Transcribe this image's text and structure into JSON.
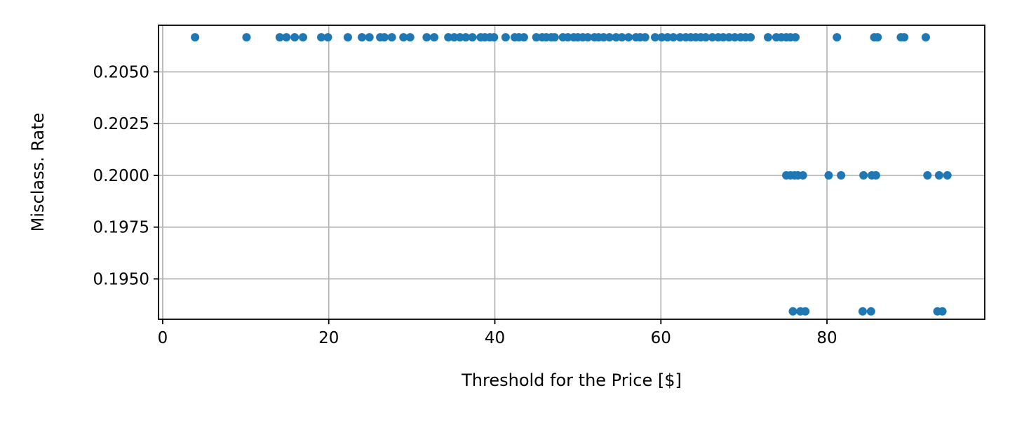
{
  "chart_data": {
    "type": "scatter",
    "title": "",
    "xlabel": "Threshold for the Price [$]",
    "ylabel": "Misclass. Rate",
    "xlim": [
      -0.5,
      99
    ],
    "ylim": [
      0.19305,
      0.20725
    ],
    "xticks": [
      0,
      20,
      40,
      60,
      80
    ],
    "xtick_labels": [
      "0",
      "20",
      "40",
      "60",
      "80"
    ],
    "yticks": [
      0.195,
      0.1975,
      0.2,
      0.2025,
      0.205
    ],
    "ytick_labels": [
      "0.1950",
      "0.1975",
      "0.2000",
      "0.2025",
      "0.2050"
    ],
    "grid": true,
    "marker_color": "#1f77b4",
    "series": [
      {
        "points": [
          [
            3.9,
            0.20667
          ],
          [
            10.1,
            0.20667
          ],
          [
            14.1,
            0.20667
          ],
          [
            14.9,
            0.20667
          ],
          [
            15.9,
            0.20667
          ],
          [
            16.9,
            0.20667
          ],
          [
            19.1,
            0.20667
          ],
          [
            19.9,
            0.20667
          ],
          [
            22.3,
            0.20667
          ],
          [
            24.0,
            0.20667
          ],
          [
            24.9,
            0.20667
          ],
          [
            26.2,
            0.20667
          ],
          [
            26.7,
            0.20667
          ],
          [
            27.6,
            0.20667
          ],
          [
            29.0,
            0.20667
          ],
          [
            29.8,
            0.20667
          ],
          [
            31.8,
            0.20667
          ],
          [
            32.7,
            0.20667
          ],
          [
            34.4,
            0.20667
          ],
          [
            35.1,
            0.20667
          ],
          [
            35.8,
            0.20667
          ],
          [
            36.5,
            0.20667
          ],
          [
            37.3,
            0.20667
          ],
          [
            38.3,
            0.20667
          ],
          [
            38.8,
            0.20667
          ],
          [
            39.4,
            0.20667
          ],
          [
            39.9,
            0.20667
          ],
          [
            41.3,
            0.20667
          ],
          [
            42.4,
            0.20667
          ],
          [
            42.9,
            0.20667
          ],
          [
            43.5,
            0.20667
          ],
          [
            45.0,
            0.20667
          ],
          [
            45.7,
            0.20667
          ],
          [
            46.2,
            0.20667
          ],
          [
            46.8,
            0.20667
          ],
          [
            47.2,
            0.20667
          ],
          [
            48.2,
            0.20667
          ],
          [
            48.8,
            0.20667
          ],
          [
            49.5,
            0.20667
          ],
          [
            50.0,
            0.20667
          ],
          [
            50.6,
            0.20667
          ],
          [
            51.2,
            0.20667
          ],
          [
            52.0,
            0.20667
          ],
          [
            52.5,
            0.20667
          ],
          [
            53.1,
            0.20667
          ],
          [
            53.8,
            0.20667
          ],
          [
            54.6,
            0.20667
          ],
          [
            55.3,
            0.20667
          ],
          [
            56.1,
            0.20667
          ],
          [
            57.0,
            0.20667
          ],
          [
            57.5,
            0.20667
          ],
          [
            58.1,
            0.20667
          ],
          [
            59.3,
            0.20667
          ],
          [
            60.1,
            0.20667
          ],
          [
            60.8,
            0.20667
          ],
          [
            61.5,
            0.20667
          ],
          [
            62.3,
            0.20667
          ],
          [
            63.0,
            0.20667
          ],
          [
            63.6,
            0.20667
          ],
          [
            64.2,
            0.20667
          ],
          [
            64.8,
            0.20667
          ],
          [
            65.4,
            0.20667
          ],
          [
            66.2,
            0.20667
          ],
          [
            66.9,
            0.20667
          ],
          [
            67.5,
            0.20667
          ],
          [
            68.2,
            0.20667
          ],
          [
            68.9,
            0.20667
          ],
          [
            69.6,
            0.20667
          ],
          [
            70.2,
            0.20667
          ],
          [
            70.8,
            0.20667
          ],
          [
            72.9,
            0.20667
          ],
          [
            73.9,
            0.20667
          ],
          [
            74.5,
            0.20667
          ],
          [
            75.1,
            0.20667
          ],
          [
            75.6,
            0.20667
          ],
          [
            76.2,
            0.20667
          ],
          [
            81.2,
            0.20667
          ],
          [
            85.7,
            0.20667
          ],
          [
            86.1,
            0.20667
          ],
          [
            88.9,
            0.20667
          ],
          [
            89.3,
            0.20667
          ],
          [
            91.9,
            0.20667
          ],
          [
            75.1,
            0.2
          ],
          [
            75.6,
            0.2
          ],
          [
            76.1,
            0.2
          ],
          [
            76.5,
            0.2
          ],
          [
            77.1,
            0.2
          ],
          [
            80.2,
            0.2
          ],
          [
            81.7,
            0.2
          ],
          [
            84.4,
            0.2
          ],
          [
            85.4,
            0.2
          ],
          [
            85.9,
            0.2
          ],
          [
            92.1,
            0.2
          ],
          [
            93.5,
            0.2
          ],
          [
            94.5,
            0.2
          ],
          [
            75.9,
            0.19343
          ],
          [
            76.8,
            0.19343
          ],
          [
            77.4,
            0.19343
          ],
          [
            84.3,
            0.19343
          ],
          [
            85.3,
            0.19343
          ],
          [
            93.3,
            0.19343
          ],
          [
            93.9,
            0.19343
          ]
        ]
      }
    ]
  }
}
